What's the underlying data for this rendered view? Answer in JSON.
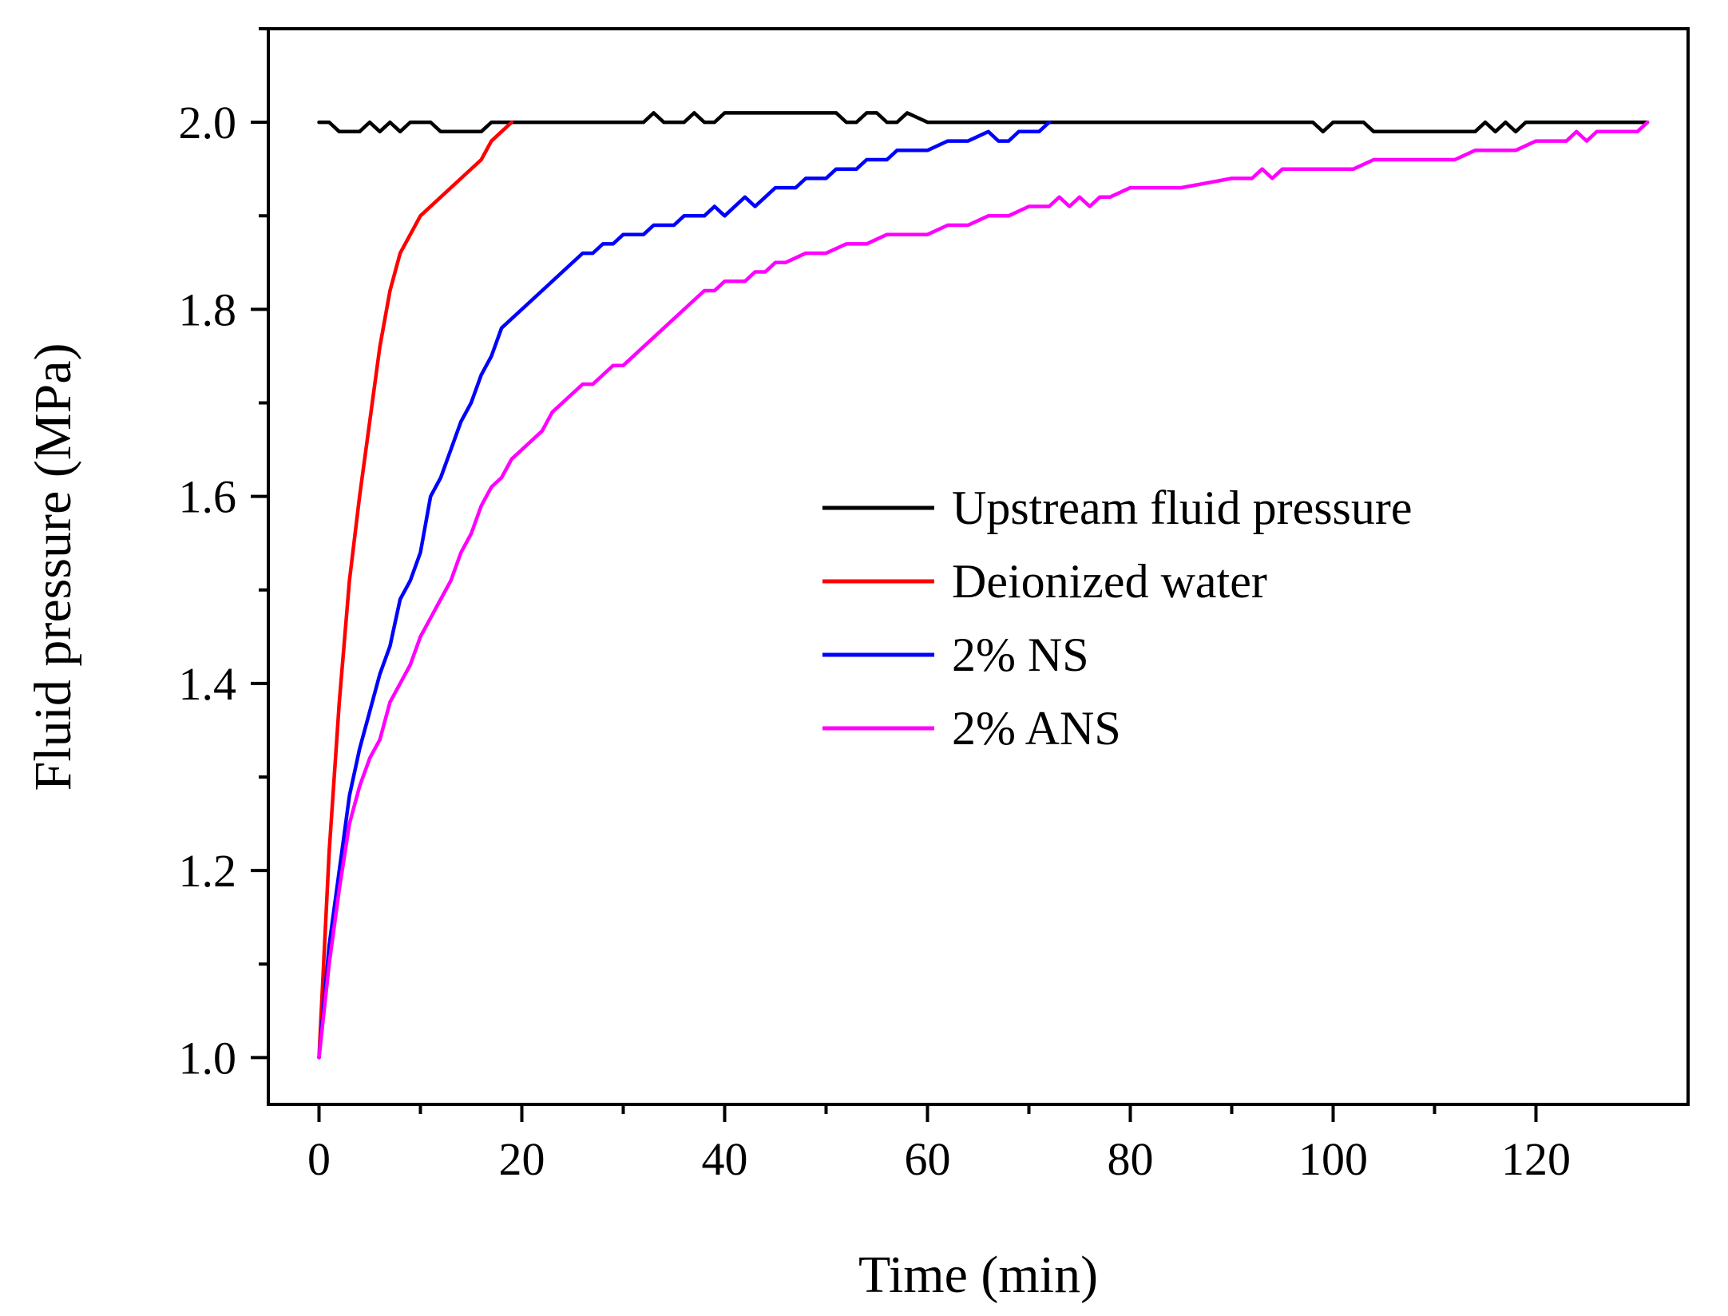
{
  "chart_data": {
    "type": "line",
    "title": "",
    "xlabel": "Time (min)",
    "ylabel": "Fluid pressure (MPa)",
    "xlim": [
      -5,
      135
    ],
    "ylim": [
      0.95,
      2.1
    ],
    "x_ticks": [
      0,
      20,
      40,
      60,
      80,
      100,
      120
    ],
    "x_tick_labels": [
      "0",
      "20",
      "40",
      "60",
      "80",
      "100",
      "120"
    ],
    "y_ticks": [
      1.0,
      1.2,
      1.4,
      1.6,
      1.8,
      2.0
    ],
    "y_tick_labels": [
      "1.0",
      "1.2",
      "1.4",
      "1.6",
      "1.8",
      "2.0"
    ],
    "grid": false,
    "legend_position": "center-right",
    "series": [
      {
        "name": "Upstream fluid pressure",
        "color": "#000000",
        "x": [
          0,
          1,
          2,
          3,
          4,
          5,
          6,
          7,
          8,
          9,
          10,
          11,
          12,
          14,
          16,
          17,
          18,
          20,
          25,
          30,
          32,
          33,
          34,
          36,
          37,
          38,
          39,
          40,
          45,
          50,
          51,
          52,
          53,
          54,
          55,
          56,
          57,
          58,
          60,
          70,
          80,
          90,
          98,
          99,
          100,
          101,
          103,
          104,
          110,
          114,
          115,
          116,
          117,
          118,
          119,
          120,
          125,
          131
        ],
        "y": [
          2.0,
          2.0,
          1.99,
          1.99,
          1.99,
          2.0,
          1.99,
          2.0,
          1.99,
          2.0,
          2.0,
          2.0,
          1.99,
          1.99,
          1.99,
          2.0,
          2.0,
          2.0,
          2.0,
          2.0,
          2.0,
          2.01,
          2.0,
          2.0,
          2.01,
          2.0,
          2.0,
          2.01,
          2.01,
          2.01,
          2.01,
          2.0,
          2.0,
          2.01,
          2.01,
          2.0,
          2.0,
          2.01,
          2.0,
          2.0,
          2.0,
          2.0,
          2.0,
          1.99,
          2.0,
          2.0,
          2.0,
          1.99,
          1.99,
          1.99,
          2.0,
          1.99,
          2.0,
          1.99,
          2.0,
          2.0,
          2.0,
          2.0
        ]
      },
      {
        "name": "Deionized water",
        "color": "#ff0000",
        "x": [
          0,
          1,
          2,
          3,
          4,
          5,
          6,
          7,
          8,
          9,
          10,
          12,
          14,
          16,
          17,
          18,
          19
        ],
        "y": [
          1.0,
          1.22,
          1.38,
          1.51,
          1.6,
          1.68,
          1.76,
          1.82,
          1.86,
          1.88,
          1.9,
          1.92,
          1.94,
          1.96,
          1.98,
          1.99,
          2.0
        ]
      },
      {
        "name": "2% NS",
        "color": "#0000ff",
        "x": [
          0,
          1,
          2,
          3,
          4,
          5,
          6,
          7,
          8,
          9,
          10,
          11,
          12,
          13,
          14,
          15,
          16,
          17,
          18,
          20,
          22,
          24,
          26,
          27,
          28,
          29,
          30,
          31,
          32,
          33,
          34,
          35,
          36,
          37,
          38,
          39,
          40,
          41,
          42,
          43,
          44,
          45,
          46,
          47,
          48,
          49,
          50,
          51,
          52,
          53,
          54,
          55,
          56,
          57,
          58,
          60,
          62,
          64,
          66,
          67,
          68,
          69,
          70,
          71,
          72
        ],
        "y": [
          1.0,
          1.12,
          1.2,
          1.28,
          1.33,
          1.37,
          1.41,
          1.44,
          1.49,
          1.51,
          1.54,
          1.6,
          1.62,
          1.65,
          1.68,
          1.7,
          1.73,
          1.75,
          1.78,
          1.8,
          1.82,
          1.84,
          1.86,
          1.86,
          1.87,
          1.87,
          1.88,
          1.88,
          1.88,
          1.89,
          1.89,
          1.89,
          1.9,
          1.9,
          1.9,
          1.91,
          1.9,
          1.91,
          1.92,
          1.91,
          1.92,
          1.93,
          1.93,
          1.93,
          1.94,
          1.94,
          1.94,
          1.95,
          1.95,
          1.95,
          1.96,
          1.96,
          1.96,
          1.97,
          1.97,
          1.97,
          1.98,
          1.98,
          1.99,
          1.98,
          1.98,
          1.99,
          1.99,
          1.99,
          2.0
        ]
      },
      {
        "name": "2% ANS",
        "color": "#ff00ff",
        "x": [
          0,
          1,
          2,
          3,
          4,
          5,
          6,
          7,
          8,
          9,
          10,
          11,
          12,
          13,
          14,
          15,
          16,
          17,
          18,
          19,
          20,
          22,
          23,
          24,
          25,
          26,
          27,
          28,
          29,
          30,
          32,
          34,
          36,
          38,
          39,
          40,
          42,
          43,
          44,
          45,
          46,
          48,
          50,
          52,
          54,
          56,
          58,
          60,
          62,
          64,
          66,
          68,
          70,
          72,
          73,
          74,
          75,
          76,
          77,
          78,
          80,
          85,
          90,
          92,
          93,
          94,
          95,
          100,
          102,
          104,
          110,
          112,
          114,
          116,
          118,
          120,
          122,
          123,
          124,
          125,
          126,
          128,
          130,
          131
        ],
        "y": [
          1.0,
          1.1,
          1.18,
          1.25,
          1.29,
          1.32,
          1.34,
          1.38,
          1.4,
          1.42,
          1.45,
          1.47,
          1.49,
          1.51,
          1.54,
          1.56,
          1.59,
          1.61,
          1.62,
          1.64,
          1.65,
          1.67,
          1.69,
          1.7,
          1.71,
          1.72,
          1.72,
          1.73,
          1.74,
          1.74,
          1.76,
          1.78,
          1.8,
          1.82,
          1.82,
          1.83,
          1.83,
          1.84,
          1.84,
          1.85,
          1.85,
          1.86,
          1.86,
          1.87,
          1.87,
          1.88,
          1.88,
          1.88,
          1.89,
          1.89,
          1.9,
          1.9,
          1.91,
          1.91,
          1.92,
          1.91,
          1.92,
          1.91,
          1.92,
          1.92,
          1.93,
          1.93,
          1.94,
          1.94,
          1.95,
          1.94,
          1.95,
          1.95,
          1.95,
          1.96,
          1.96,
          1.96,
          1.97,
          1.97,
          1.97,
          1.98,
          1.98,
          1.98,
          1.99,
          1.98,
          1.99,
          1.99,
          1.99,
          2.0
        ]
      }
    ]
  }
}
